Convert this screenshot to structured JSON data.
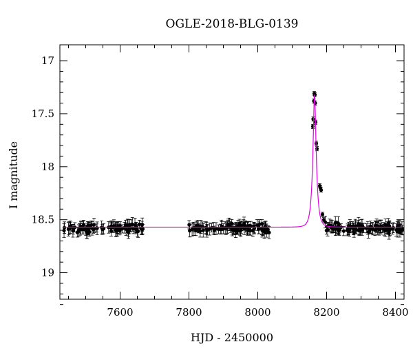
{
  "chart_data": {
    "type": "scatter",
    "title": "OGLE-2018-BLG-0139",
    "xlabel": "HJD - 2450000",
    "ylabel": "I magnitude",
    "xlim": [
      7425,
      8425
    ],
    "ylim": [
      19.25,
      16.85
    ],
    "y_inverted": true,
    "x_ticks": [
      7600,
      7800,
      8000,
      8200,
      8400
    ],
    "y_ticks": [
      17,
      17.5,
      18,
      18.5,
      19
    ],
    "x_tick_labels": [
      "7600",
      "7800",
      "8000",
      "8200",
      "8400"
    ],
    "y_tick_labels": [
      "17",
      "17.5",
      "18",
      "18.5",
      "19"
    ],
    "grid": false,
    "legend": "none",
    "colors": {
      "points": "#000000",
      "model": "#e000e0",
      "frame": "#000000"
    },
    "series": [
      {
        "kind": "observations",
        "segments": [
          {
            "x_range": [
              7435,
              7670
            ],
            "n_points": 85,
            "baseline_mag": 18.58
          },
          {
            "x_range": [
              7800,
              8040
            ],
            "n_points": 95,
            "baseline_mag": 18.58
          },
          {
            "x_range": [
              8195,
              8420
            ],
            "n_points": 110,
            "baseline_mag": 18.58
          }
        ],
        "peak_points": [
          {
            "x": 8160,
            "y": 17.62
          },
          {
            "x": 8161,
            "y": 17.55
          },
          {
            "x": 8163,
            "y": 17.38
          },
          {
            "x": 8164,
            "y": 17.31
          },
          {
            "x": 8166,
            "y": 17.32
          },
          {
            "x": 8167,
            "y": 17.4
          },
          {
            "x": 8168,
            "y": 17.58
          },
          {
            "x": 8170,
            "y": 17.78
          },
          {
            "x": 8172,
            "y": 17.83
          },
          {
            "x": 8180,
            "y": 18.18
          },
          {
            "x": 8182,
            "y": 18.2
          },
          {
            "x": 8184,
            "y": 18.22
          },
          {
            "x": 8188,
            "y": 18.45
          },
          {
            "x": 8192,
            "y": 18.5
          }
        ],
        "typical_error": 0.05
      },
      {
        "kind": "model",
        "baseline_mag": 18.57,
        "t0": 8165,
        "peak_mag": 17.32,
        "tE": 10
      }
    ]
  }
}
